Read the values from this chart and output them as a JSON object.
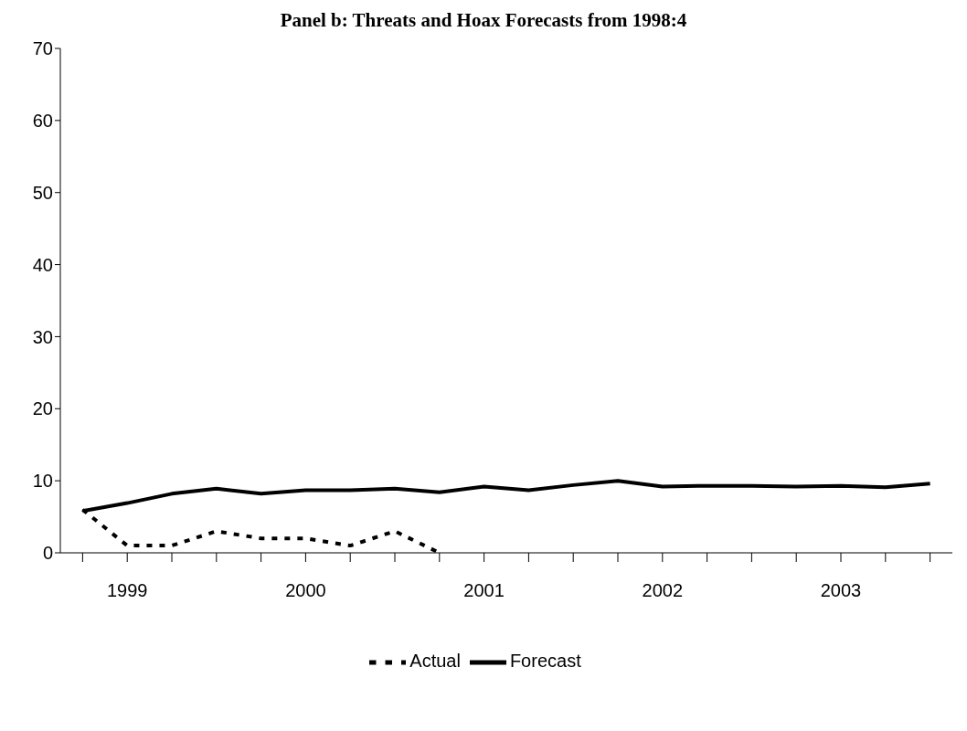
{
  "chart_data": {
    "type": "line",
    "title": "Panel b: Threats and Hoax Forecasts from 1998:4",
    "categories": [
      null,
      "1999",
      null,
      null,
      null,
      "2000",
      null,
      null,
      null,
      "2001",
      null,
      null,
      null,
      "2002",
      null,
      null,
      null,
      "2003",
      null,
      null
    ],
    "series": [
      {
        "name": "Forecast",
        "color": "#000000",
        "line_style": "solid",
        "values": [
          5.8,
          6.9,
          8.2,
          8.9,
          8.2,
          8.7,
          8.7,
          8.9,
          8.4,
          9.2,
          8.7,
          9.4,
          10.0,
          9.2,
          9.3,
          9.3,
          9.2,
          9.3,
          9.1,
          9.6
        ]
      },
      {
        "name": "Actual",
        "color": "#000000",
        "line_style": "dotted",
        "values": [
          6,
          1,
          1,
          3,
          2,
          2,
          1,
          3,
          0,
          null,
          null,
          null,
          null,
          null,
          null,
          null,
          null,
          null,
          null,
          null
        ]
      }
    ],
    "ylim": [
      0,
      70
    ],
    "yticks": [
      0,
      10,
      20,
      30,
      40,
      50,
      60,
      70
    ],
    "grid": false,
    "legend": "bottom",
    "marker": "none"
  }
}
